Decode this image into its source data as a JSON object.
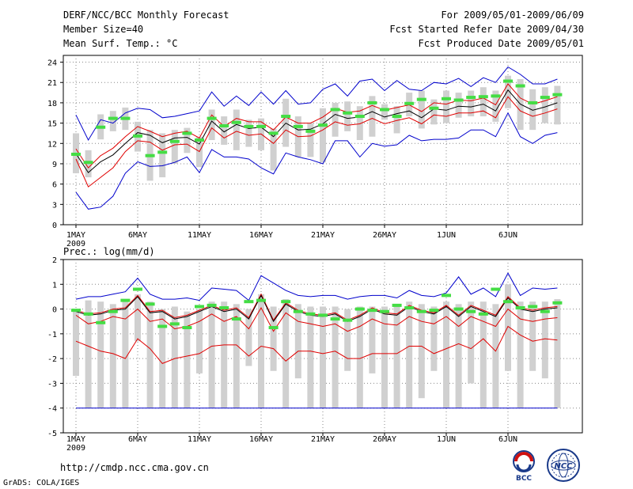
{
  "header": {
    "title": "DERF/NCC/BCC Monthly Forecast",
    "member_size": "Member Size=40",
    "variable": "Mean Surf. Temp.: °C",
    "period": "For 2009/05/01-2009/06/09",
    "refer_date": "Fcst Started Refer Date 2009/04/30",
    "produced_date": "Fcst Produced Date 2009/05/01"
  },
  "footer": {
    "url": "http://cmdp.ncc.cma.gov.cn",
    "credit": "GrADS: COLA/IGES"
  },
  "logos": {
    "bcc_text": "BCC",
    "ncc_text": "NCC"
  },
  "colors": {
    "mean": "#000000",
    "spread": "#e00000",
    "extreme": "#0000cc",
    "box": "#d0d0d0",
    "observed": "#44dd44",
    "grid": "#888888"
  },
  "chart_data": [
    {
      "type": "line",
      "title": "Mean Surf. Temp.: °C",
      "x_ticks": [
        "1MAY",
        "6MAY",
        "11MAY",
        "16MAY",
        "21MAY",
        "26MAY",
        "1JUN",
        "6JUN"
      ],
      "x_year": "2009",
      "y_ticks": [
        "0",
        "3",
        "6",
        "9",
        "12",
        "15",
        "18",
        "21",
        "24"
      ],
      "ylim": [
        0,
        25
      ],
      "days": 40,
      "series": [
        {
          "name": "mean",
          "values": [
            10.5,
            7.7,
            9.3,
            10.3,
            12.0,
            13.6,
            13.2,
            12.1,
            12.8,
            12.9,
            11.9,
            15.3,
            13.7,
            14.8,
            14.2,
            14.4,
            13.0,
            15.0,
            14.0,
            14.1,
            14.9,
            16.3,
            15.7,
            15.9,
            16.7,
            15.9,
            16.4,
            16.8,
            15.8,
            17.1,
            16.9,
            17.5,
            17.4,
            17.8,
            16.8,
            19.9,
            17.8,
            16.9,
            17.4,
            18.0
          ]
        },
        {
          "name": "upper_spread",
          "values": [
            11.2,
            8.4,
            10.2,
            11.3,
            13.0,
            14.5,
            13.8,
            13.0,
            13.5,
            13.8,
            12.8,
            16.2,
            14.5,
            15.7,
            15.2,
            15.2,
            14.0,
            15.9,
            15.0,
            15.0,
            15.9,
            17.2,
            16.6,
            16.8,
            17.6,
            16.9,
            17.3,
            17.7,
            16.7,
            18.0,
            17.8,
            18.4,
            18.3,
            18.7,
            17.7,
            20.8,
            18.7,
            17.8,
            18.3,
            18.9
          ]
        },
        {
          "name": "lower_spread",
          "values": [
            9.7,
            5.6,
            7.0,
            8.4,
            10.8,
            12.4,
            12.2,
            11.0,
            11.8,
            11.9,
            10.8,
            14.3,
            12.8,
            13.8,
            13.2,
            13.4,
            12.0,
            14.0,
            13.0,
            13.1,
            14.0,
            15.2,
            14.7,
            14.9,
            15.7,
            14.9,
            15.4,
            15.8,
            14.9,
            16.2,
            16.0,
            16.5,
            16.5,
            16.8,
            15.8,
            18.9,
            16.8,
            16.0,
            16.5,
            17.1
          ]
        },
        {
          "name": "max",
          "values": [
            16.2,
            12.5,
            15.5,
            15.0,
            16.5,
            17.2,
            17.0,
            15.8,
            16.0,
            16.4,
            16.8,
            19.6,
            17.5,
            19.0,
            17.6,
            19.6,
            17.8,
            19.8,
            17.8,
            18.0,
            20.0,
            20.8,
            19.0,
            21.2,
            21.5,
            19.8,
            21.3,
            20.0,
            19.8,
            21.0,
            20.8,
            21.6,
            20.4,
            21.7,
            21.0,
            23.3,
            22.2,
            20.8,
            20.8,
            21.5
          ]
        },
        {
          "name": "min",
          "values": [
            4.8,
            2.3,
            2.6,
            4.2,
            7.6,
            9.3,
            8.6,
            8.7,
            9.2,
            10.0,
            7.7,
            11.1,
            10.0,
            10.0,
            9.7,
            8.4,
            7.5,
            10.6,
            10.0,
            9.6,
            9.0,
            12.4,
            12.4,
            10.0,
            12.0,
            11.6,
            11.8,
            13.2,
            12.4,
            12.6,
            12.6,
            12.8,
            14.0,
            14.0,
            13.0,
            16.5,
            13.0,
            12.0,
            13.2,
            13.6
          ]
        },
        {
          "name": "observed",
          "values": [
            10.4,
            9.2,
            14.4,
            15.7,
            15.7,
            13.1,
            10.2,
            10.7,
            12.3,
            13.5,
            12.5,
            15.7,
            14.6,
            15.1,
            14.5,
            14.5,
            13.5,
            16.0,
            14.5,
            13.8,
            14.7,
            17.0,
            16.5,
            16.0,
            18.0,
            17.0,
            16.0,
            17.9,
            18.5,
            17.2,
            18.6,
            18.4,
            18.8,
            18.9,
            19.0,
            21.2,
            20.5,
            18.0,
            18.8,
            19.2
          ]
        },
        {
          "name": "box_top",
          "values": [
            13.5,
            11.0,
            16.3,
            16.8,
            17.3,
            15.2,
            14.0,
            13.5,
            14.0,
            14.3,
            13.0,
            17.0,
            16.0,
            17.0,
            15.5,
            15.7,
            14.2,
            18.6,
            16.0,
            15.0,
            17.2,
            18.0,
            18.2,
            17.5,
            19.0,
            17.8,
            17.5,
            19.5,
            19.8,
            18.5,
            19.8,
            19.5,
            19.8,
            20.3,
            19.8,
            22.0,
            21.5,
            20.0,
            20.3,
            20.5
          ]
        },
        {
          "name": "box_bottom",
          "values": [
            7.6,
            7.0,
            12.6,
            13.8,
            14.0,
            10.8,
            6.5,
            7.0,
            9.0,
            10.6,
            8.5,
            12.5,
            11.8,
            11.0,
            11.5,
            11.0,
            8.0,
            11.5,
            10.0,
            10.0,
            9.2,
            13.0,
            13.8,
            12.5,
            13.0,
            15.5,
            13.5,
            16.0,
            14.2,
            14.8,
            15.0,
            15.8,
            16.0,
            16.0,
            15.2,
            17.2,
            14.0,
            14.0,
            15.0,
            14.8
          ]
        }
      ]
    },
    {
      "type": "line",
      "title": "Prec.: log(mm/d)",
      "x_ticks": [
        "1MAY",
        "6MAY",
        "11MAY",
        "16MAY",
        "21MAY",
        "26MAY",
        "1JUN",
        "6JUN"
      ],
      "x_year": "2009",
      "y_ticks": [
        "-5",
        "-4",
        "-3",
        "-2",
        "-1",
        "0",
        "1",
        "2"
      ],
      "ylim": [
        -5,
        2
      ],
      "days": 40,
      "floor": -4,
      "series": [
        {
          "name": "mean",
          "values": [
            -0.1,
            -0.25,
            -0.2,
            -0.05,
            0.0,
            0.5,
            -0.15,
            -0.1,
            -0.4,
            -0.3,
            -0.1,
            0.1,
            -0.1,
            0.0,
            -0.4,
            0.55,
            -0.5,
            0.2,
            -0.1,
            -0.25,
            -0.3,
            -0.2,
            -0.5,
            -0.3,
            0.0,
            -0.2,
            -0.25,
            0.1,
            -0.1,
            -0.2,
            0.1,
            -0.3,
            0.1,
            -0.1,
            -0.3,
            0.45,
            0.0,
            -0.1,
            0.0,
            0.05
          ]
        },
        {
          "name": "upper_spread",
          "values": [
            -0.05,
            -0.2,
            -0.15,
            0.0,
            0.05,
            0.55,
            -0.1,
            -0.05,
            -0.35,
            -0.25,
            -0.05,
            0.15,
            -0.05,
            0.05,
            -0.35,
            0.6,
            -0.45,
            0.25,
            -0.05,
            -0.2,
            -0.25,
            -0.15,
            -0.45,
            -0.25,
            0.05,
            -0.15,
            -0.2,
            0.15,
            -0.05,
            -0.15,
            0.15,
            -0.25,
            0.15,
            -0.05,
            -0.25,
            0.5,
            0.05,
            -0.05,
            0.05,
            0.1
          ]
        },
        {
          "name": "lower_spread",
          "values": [
            -0.25,
            -0.6,
            -0.5,
            -0.3,
            -0.4,
            0.0,
            -0.5,
            -0.4,
            -0.8,
            -0.7,
            -0.5,
            -0.2,
            -0.5,
            -0.3,
            -0.8,
            0.05,
            -0.9,
            -0.15,
            -0.5,
            -0.6,
            -0.7,
            -0.6,
            -0.9,
            -0.7,
            -0.4,
            -0.6,
            -0.65,
            -0.3,
            -0.5,
            -0.6,
            -0.3,
            -0.7,
            -0.3,
            -0.5,
            -0.7,
            0.0,
            -0.4,
            -0.5,
            -0.4,
            -0.35
          ]
        },
        {
          "name": "lower_bound",
          "values": [
            -1.3,
            -1.5,
            -1.7,
            -1.8,
            -2.0,
            -1.2,
            -1.6,
            -2.2,
            -2.0,
            -1.9,
            -1.8,
            -1.5,
            -1.45,
            -1.45,
            -1.9,
            -1.5,
            -1.6,
            -2.1,
            -1.7,
            -1.7,
            -1.8,
            -1.7,
            -2.0,
            -2.0,
            -1.8,
            -1.8,
            -1.8,
            -1.5,
            -1.5,
            -1.8,
            -1.6,
            -1.4,
            -1.6,
            -1.2,
            -1.7,
            -0.7,
            -1.05,
            -1.3,
            -1.2,
            -1.25
          ]
        },
        {
          "name": "max",
          "values": [
            0.4,
            0.5,
            0.5,
            0.6,
            0.7,
            1.25,
            0.6,
            0.4,
            0.4,
            0.45,
            0.35,
            0.85,
            0.8,
            0.75,
            0.35,
            1.35,
            1.05,
            0.75,
            0.55,
            0.5,
            0.55,
            0.55,
            0.4,
            0.5,
            0.55,
            0.55,
            0.45,
            0.75,
            0.55,
            0.5,
            0.65,
            1.3,
            0.6,
            0.85,
            0.5,
            1.45,
            0.55,
            0.85,
            0.8,
            0.85
          ]
        },
        {
          "name": "observed",
          "values": [
            -0.05,
            -0.2,
            -0.55,
            -0.1,
            0.35,
            0.8,
            0.2,
            -0.7,
            -0.6,
            -0.75,
            0.1,
            0.15,
            0.05,
            -0.4,
            0.3,
            0.35,
            -0.75,
            0.3,
            -0.1,
            -0.2,
            -0.25,
            -0.4,
            -0.45,
            0.0,
            -0.05,
            -0.1,
            0.15,
            0.05,
            -0.1,
            -0.05,
            0.55,
            0.0,
            -0.1,
            -0.2,
            0.8,
            0.3,
            0.05,
            0.1,
            -0.1,
            0.25
          ]
        },
        {
          "name": "box_top",
          "values": [
            0.0,
            0.35,
            0.3,
            0.2,
            0.4,
            0.6,
            0.3,
            0.0,
            0.1,
            -0.1,
            0.0,
            0.3,
            0.3,
            0.2,
            0.0,
            0.6,
            0.1,
            0.4,
            0.2,
            0.1,
            0.1,
            0.1,
            0.0,
            0.1,
            0.1,
            0.1,
            0.1,
            0.3,
            0.2,
            0.1,
            0.3,
            0.2,
            0.3,
            0.3,
            0.2,
            1.0,
            0.3,
            0.3,
            0.3,
            0.4
          ]
        },
        {
          "name": "box_bottom",
          "values": [
            -2.7,
            -4.0,
            -4.0,
            -4.0,
            -4.0,
            -1.3,
            -4.0,
            -4.0,
            -4.0,
            -4.0,
            -2.6,
            -4.0,
            -4.0,
            -4.0,
            -2.3,
            -4.0,
            -2.5,
            -4.0,
            -2.8,
            -4.0,
            -4.0,
            -4.0,
            -2.5,
            -4.0,
            -2.6,
            -4.0,
            -4.0,
            -4.0,
            -3.6,
            -2.5,
            -4.0,
            -4.0,
            -3.0,
            -4.0,
            -4.0,
            -2.5,
            -4.0,
            -2.5,
            -2.8,
            -4.0
          ]
        }
      ]
    }
  ]
}
